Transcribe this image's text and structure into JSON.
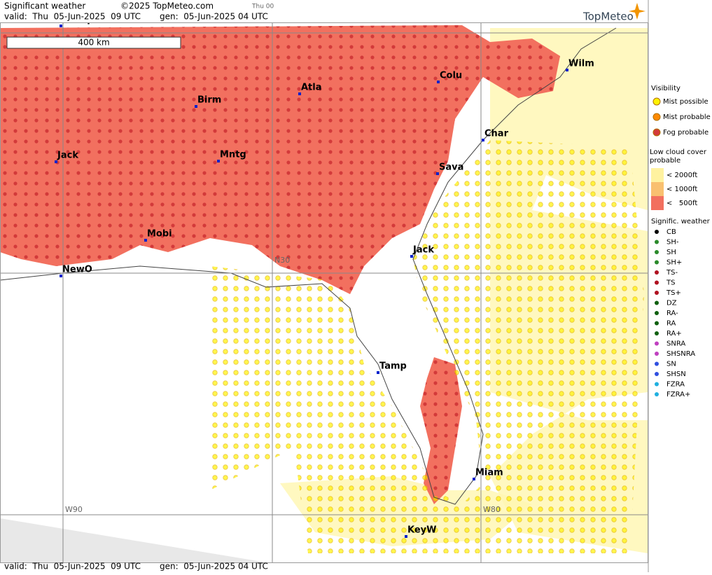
{
  "header": {
    "title": "Significant weather",
    "copyright": "©2025 TopMeteo.com",
    "run": "Thu 00",
    "valid": "valid:  Thu  05-Jun-2025  09 UTC",
    "gen": "gen:  05-Jun-2025 04 UTC",
    "logo": "TopMeteo"
  },
  "map": {
    "scale": "400 km",
    "grid_labels": [
      "W90",
      "W80",
      "N30"
    ],
    "cities": [
      "Memp",
      "Birm",
      "Atla",
      "Colu",
      "Wilm",
      "Char",
      "Sava",
      "Mntg",
      "Jack",
      "Mobi",
      "NewO",
      "Jack",
      "Tamp",
      "Miam",
      "KeyW"
    ]
  },
  "legend": {
    "visibility": {
      "title": "Visibility",
      "items": [
        "Mist possible",
        "Mist probable",
        "Fog probable"
      ]
    },
    "low_cloud": {
      "title": "Low cloud cover probable",
      "items": [
        "< 2000ft",
        "< 1000ft",
        "<   500ft"
      ]
    },
    "weather": {
      "title": "Signific. weather",
      "items": [
        "CB",
        "SH-",
        "SH",
        "SH+",
        "TS-",
        "TS",
        "TS+",
        "DZ",
        "RA-",
        "RA",
        "RA+",
        "SNRA",
        "SHSNRA",
        "SN",
        "SHSN",
        "FZRA",
        "FZRA+"
      ]
    }
  },
  "footer": {
    "valid": "valid:  Thu  05-Jun-2025  09 UTC",
    "gen": "gen:  05-Jun-2025 04 UTC"
  }
}
